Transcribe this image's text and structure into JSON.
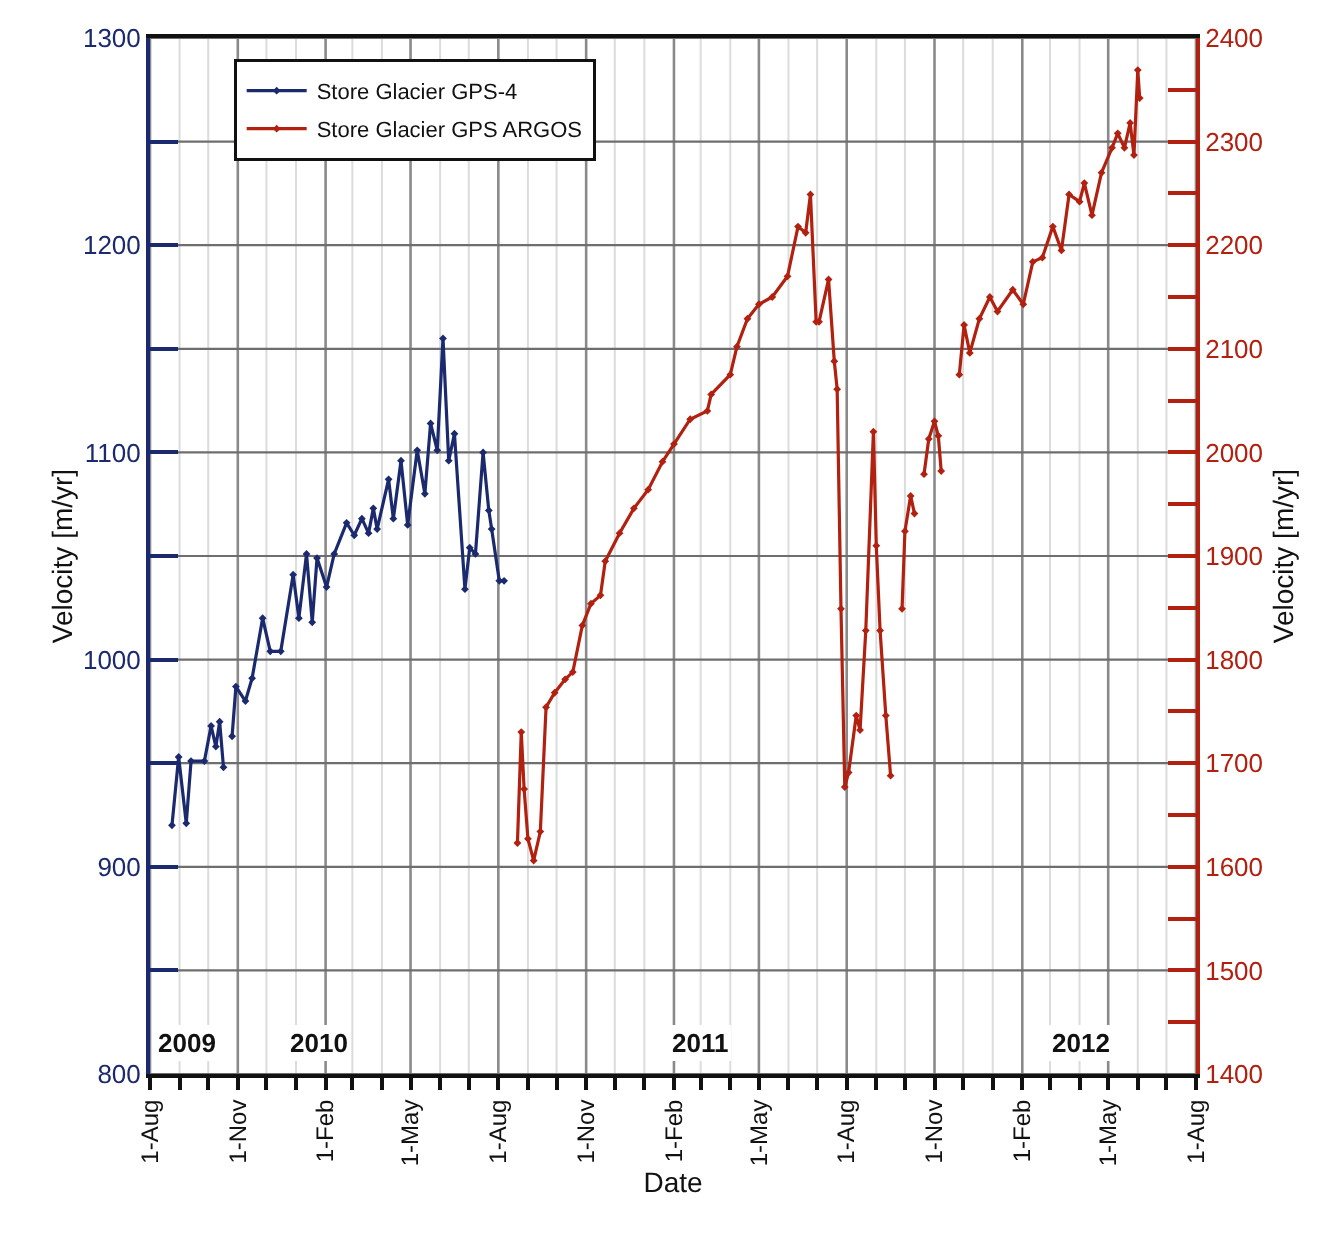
{
  "chart_data": {
    "type": "line",
    "xlabel": "Date",
    "ylabel": "Velocity [m/yr]",
    "y2label": "Velocity [m/yr]",
    "xlim": [
      "2009-08-01",
      "2012-08-01"
    ],
    "xticks": [
      {
        "value": "2009-08-01",
        "label": "1-Aug"
      },
      {
        "value": "2009-09-01",
        "label": null
      },
      {
        "value": "2009-10-01",
        "label": null
      },
      {
        "value": "2009-11-01",
        "label": "1-Nov"
      },
      {
        "value": "2009-12-01",
        "label": null
      },
      {
        "value": "2010-01-01",
        "label": null
      },
      {
        "value": "2010-02-01",
        "label": "1-Feb"
      },
      {
        "value": "2010-03-01",
        "label": null
      },
      {
        "value": "2010-04-01",
        "label": null
      },
      {
        "value": "2010-05-01",
        "label": "1-May"
      },
      {
        "value": "2010-06-01",
        "label": null
      },
      {
        "value": "2010-07-01",
        "label": null
      },
      {
        "value": "2010-08-01",
        "label": "1-Aug"
      },
      {
        "value": "2010-09-01",
        "label": null
      },
      {
        "value": "2010-10-01",
        "label": null
      },
      {
        "value": "2010-11-01",
        "label": "1-Nov"
      },
      {
        "value": "2010-12-01",
        "label": null
      },
      {
        "value": "2011-01-01",
        "label": null
      },
      {
        "value": "2011-02-01",
        "label": "1-Feb"
      },
      {
        "value": "2011-03-01",
        "label": null
      },
      {
        "value": "2011-04-01",
        "label": null
      },
      {
        "value": "2011-05-01",
        "label": "1-May"
      },
      {
        "value": "2011-06-01",
        "label": null
      },
      {
        "value": "2011-07-01",
        "label": null
      },
      {
        "value": "2011-08-01",
        "label": "1-Aug"
      },
      {
        "value": "2011-09-01",
        "label": null
      },
      {
        "value": "2011-10-01",
        "label": null
      },
      {
        "value": "2011-11-01",
        "label": "1-Nov"
      },
      {
        "value": "2011-12-01",
        "label": null
      },
      {
        "value": "2012-01-01",
        "label": null
      },
      {
        "value": "2012-02-01",
        "label": "1-Feb"
      },
      {
        "value": "2012-03-01",
        "label": null
      },
      {
        "value": "2012-04-01",
        "label": null
      },
      {
        "value": "2012-05-01",
        "label": "1-May"
      },
      {
        "value": "2012-06-01",
        "label": null
      },
      {
        "value": "2012-07-01",
        "label": null
      },
      {
        "value": "2012-08-01",
        "label": "1-Aug"
      }
    ],
    "ylim": [
      800,
      1300
    ],
    "yticks": [
      800,
      {
        "value": 850,
        "label": null
      },
      900,
      {
        "value": 950,
        "label": null
      },
      1000,
      {
        "value": 1050,
        "label": null
      },
      1100,
      {
        "value": 1150,
        "label": null
      },
      1200,
      {
        "value": 1250,
        "label": null
      },
      1300
    ],
    "y2lim": [
      1400,
      2400
    ],
    "y2ticks": [
      1400,
      {
        "value": 1450,
        "label": null
      },
      1500,
      {
        "value": 1550,
        "label": null
      },
      1600,
      {
        "value": 1650,
        "label": null
      },
      1700,
      {
        "value": 1750,
        "label": null
      },
      1800,
      {
        "value": 1850,
        "label": null
      },
      1900,
      {
        "value": 1950,
        "label": null
      },
      2000,
      {
        "value": 2050,
        "label": null
      },
      2100,
      {
        "value": 2150,
        "label": null
      },
      2200,
      {
        "value": 2250,
        "label": null
      },
      2300,
      {
        "value": 2350,
        "label": null
      },
      2400
    ],
    "grid": true,
    "legend": "top left",
    "marker": "diamond",
    "line_style": "solid",
    "annotations": [
      "2009",
      "2010",
      "2011",
      "2012"
    ],
    "series": [
      {
        "name": "Store Glacier GPS-4",
        "color": "#1b2a6e",
        "x": [
          "2009-08-24",
          "2009-08-31",
          "2009-09-08",
          "2009-09-13",
          "2009-09-27",
          "2009-10-04",
          "2009-10-09",
          "2009-10-13",
          "2009-10-17",
          "2009-10-21",
          "2009-10-26",
          "2009-10-30",
          "2009-11-09",
          "2009-11-16",
          "2009-11-27",
          "2009-12-05",
          "2009-12-16",
          "2009-12-29",
          "2010-01-04",
          "2010-01-12",
          "2010-01-18",
          "2010-01-23",
          "2010-02-02",
          "2010-02-10",
          "2010-02-23",
          "2010-03-03",
          "2010-03-11",
          "2010-03-18",
          "2010-03-23",
          "2010-03-27",
          "2010-04-08",
          "2010-04-13",
          "2010-04-21",
          "2010-04-28",
          "2010-05-08",
          "2010-05-16",
          "2010-05-22",
          "2010-05-29",
          "2010-06-04",
          "2010-06-10",
          "2010-06-16",
          "2010-06-27",
          "2010-07-02",
          "2010-07-08",
          "2010-07-16",
          "2010-07-22",
          "2010-07-25",
          "2010-08-02",
          "2010-08-07"
        ],
        "values": [
          920,
          953,
          921,
          951,
          951,
          968,
          958,
          970,
          948,
          null,
          963,
          987,
          980,
          991,
          1020,
          1004,
          1004,
          1041,
          1020,
          1051,
          1018,
          1049,
          1035,
          1051,
          1066,
          1060,
          1068,
          1061,
          1073,
          1063,
          1087,
          1068,
          1096,
          1065,
          1101,
          1080,
          1114,
          1101,
          1155,
          1096,
          1109,
          1034,
          1054,
          1051,
          1100,
          1072,
          1063,
          1038,
          1038
        ]
      },
      {
        "name": "Store Glacier GPS ARGOS",
        "color": "#b2200f",
        "axis": "y2",
        "x": [
          "2010-08-21",
          "2010-08-25",
          "2010-08-28",
          "2010-09-01",
          "2010-09-07",
          "2010-09-14",
          "2010-09-20",
          "2010-09-29",
          "2010-10-10",
          "2010-10-18",
          "2010-10-28",
          "2010-11-06",
          "2010-11-16",
          "2010-11-21",
          "2010-12-06",
          "2010-12-21",
          "2011-01-05",
          "2011-01-20",
          "2011-02-01",
          "2011-02-18",
          "2011-03-08",
          "2011-03-12",
          "2011-04-01",
          "2011-04-08",
          "2011-04-19",
          "2011-05-01",
          "2011-05-15",
          "2011-05-31",
          "2011-06-11",
          "2011-06-19",
          "2011-06-24",
          "2011-06-30",
          "2011-07-03",
          "2011-07-13",
          "2011-07-19",
          "2011-07-22",
          "2011-07-26",
          "2011-07-30",
          "2011-08-03",
          "2011-08-11",
          "2011-08-15",
          "2011-08-21",
          "2011-08-29",
          "2011-09-01",
          "2011-09-05",
          "2011-09-11",
          "2011-09-16",
          "2011-09-22",
          "2011-09-28",
          "2011-10-01",
          "2011-10-07",
          "2011-10-11",
          "2011-10-16",
          "2011-10-21",
          "2011-10-26",
          "2011-11-01",
          "2011-11-05",
          "2011-11-08",
          "2011-11-18",
          "2011-11-27",
          "2011-12-02",
          "2011-12-08",
          "2011-12-18",
          "2011-12-29",
          "2012-01-06",
          "2012-01-22",
          "2012-02-02",
          "2012-02-12",
          "2012-02-22",
          "2012-03-04",
          "2012-03-13",
          "2012-03-21",
          "2012-04-01",
          "2012-04-06",
          "2012-04-14",
          "2012-04-24",
          "2012-05-05",
          "2012-05-11",
          "2012-05-18",
          "2012-05-24",
          "2012-05-28",
          "2012-06-01",
          "2012-06-03"
        ],
        "values": [
          1623,
          1730,
          1675,
          1627,
          1606,
          1634,
          1754,
          1768,
          1781,
          1788,
          1833,
          1854,
          1862,
          1895,
          1922,
          1946,
          1964,
          1991,
          2008,
          2032,
          2040,
          2056,
          2075,
          2102,
          2129,
          2143,
          2150,
          2170,
          2218,
          2212,
          2249,
          2126,
          2126,
          2167,
          2088,
          2061,
          1849,
          1677,
          1691,
          1746,
          1732,
          1828,
          2020,
          1910,
          1828,
          1746,
          1688,
          null,
          1849,
          1924,
          1958,
          1941,
          null,
          1979,
          2013,
          2030,
          2016,
          1982,
          null,
          2075,
          2123,
          2096,
          2129,
          2150,
          2136,
          2157,
          2143,
          2184,
          2188,
          2218,
          2195,
          2249,
          2242,
          2260,
          2229,
          2270,
          2294,
          2308,
          2294,
          2318,
          2287,
          2369,
          2342
        ]
      }
    ]
  }
}
